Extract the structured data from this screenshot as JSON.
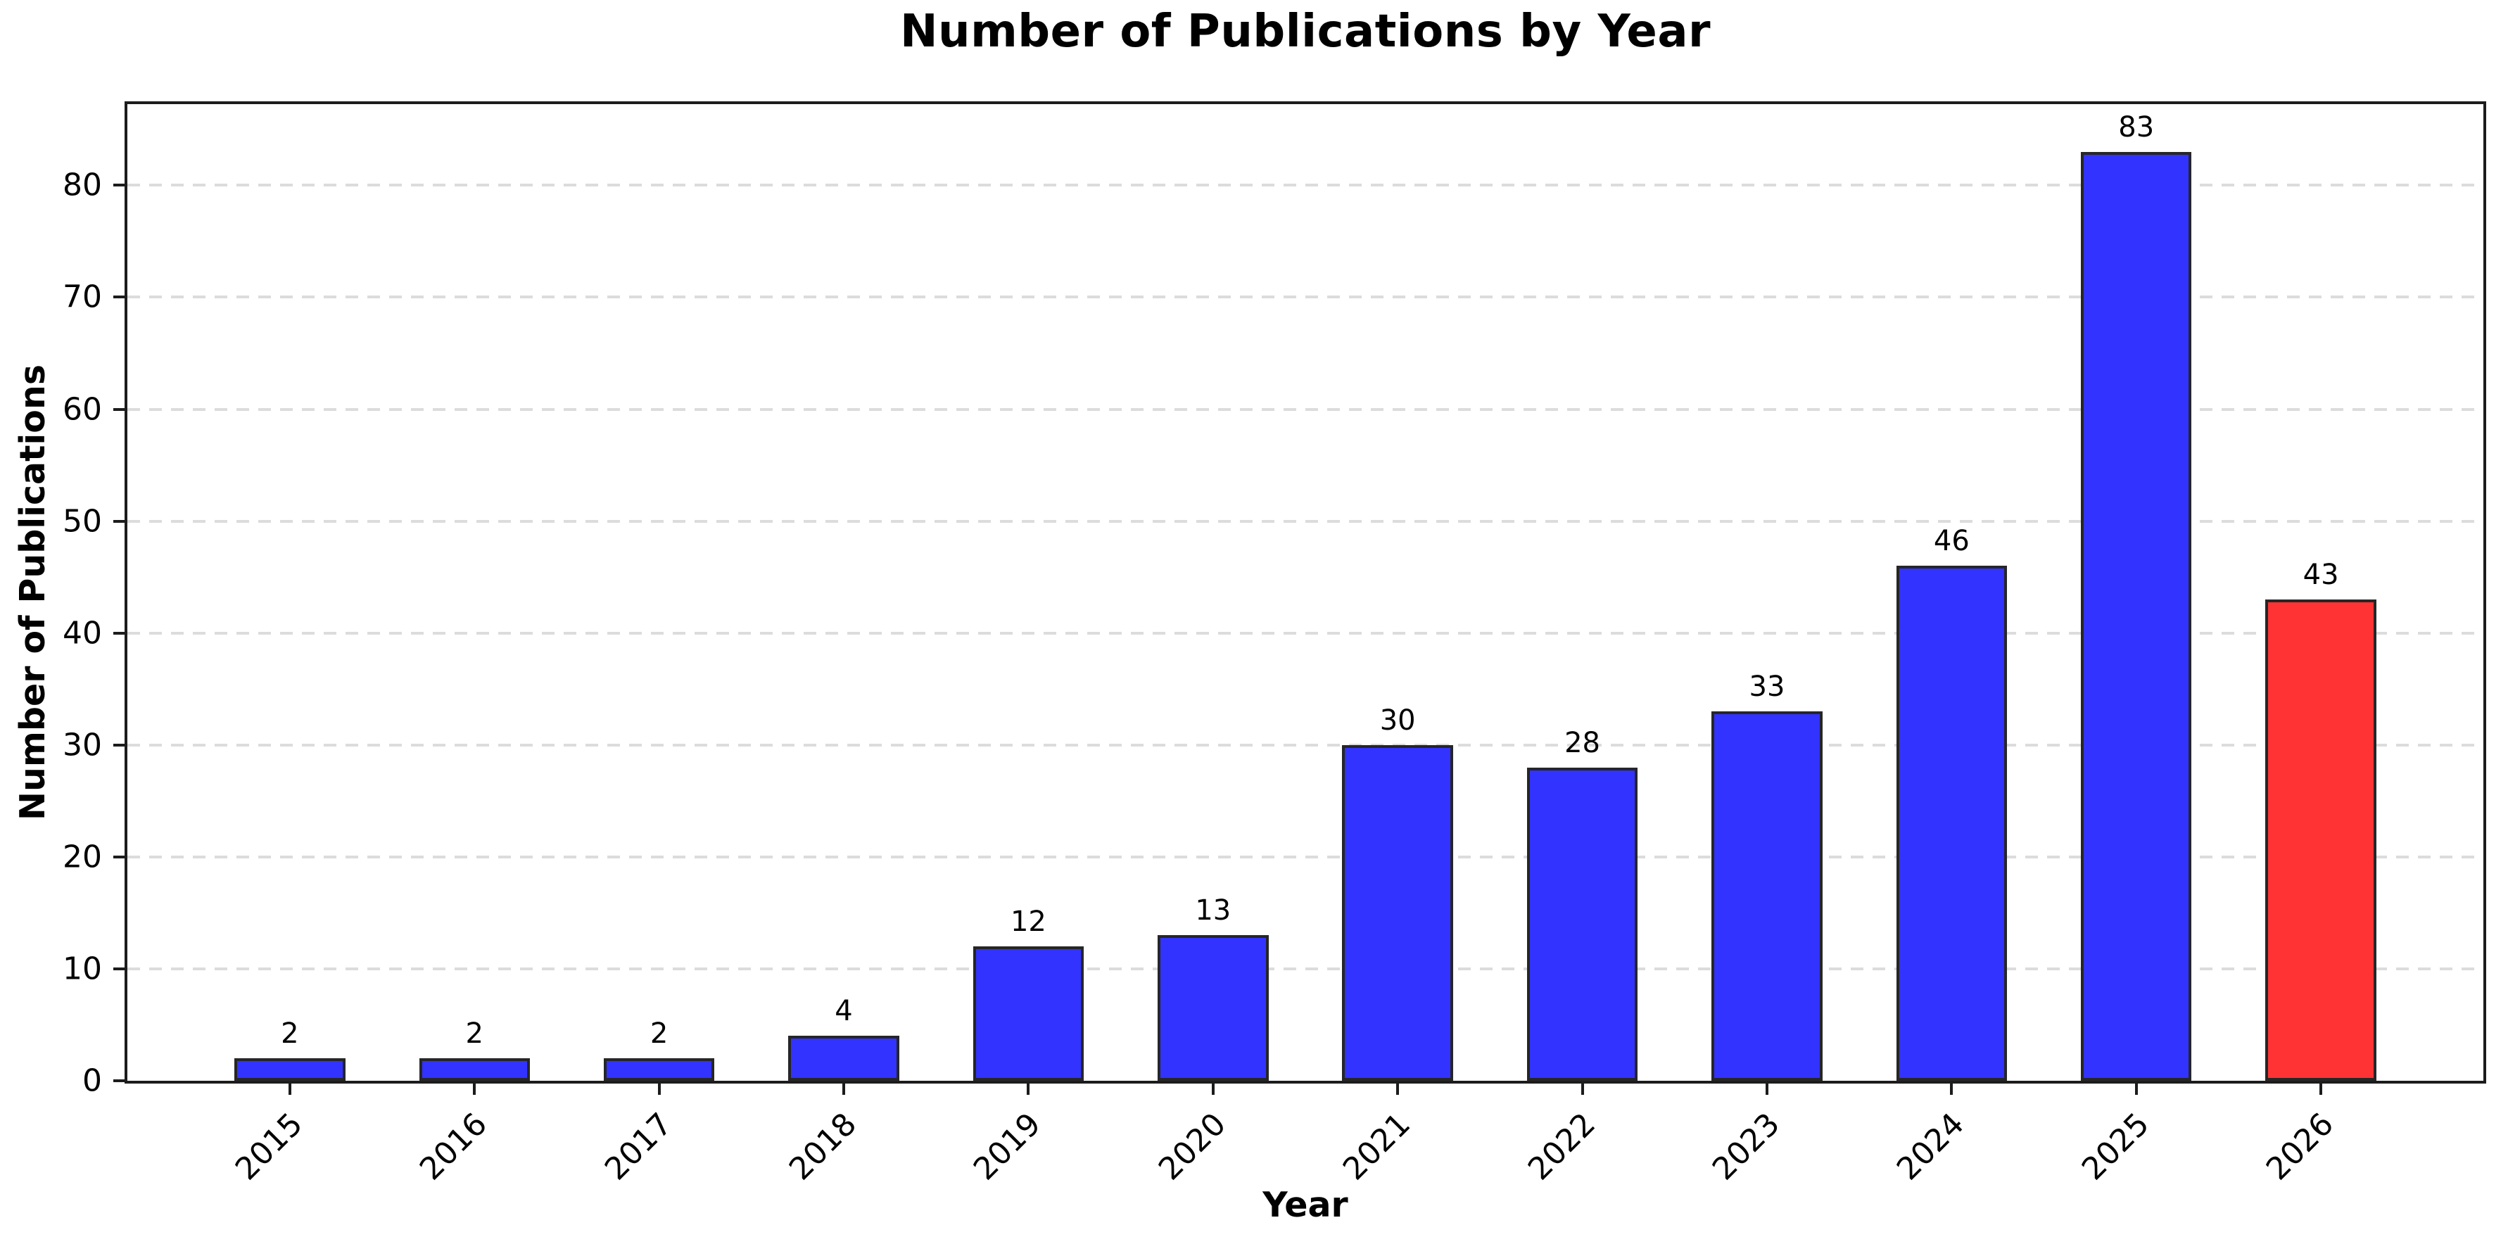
{
  "chart_data": {
    "type": "bar",
    "title": "Number of Publications by Year",
    "xlabel": "Year",
    "ylabel": "Number of Publications",
    "categories": [
      "2015",
      "2016",
      "2017",
      "2018",
      "2019",
      "2020",
      "2021",
      "2022",
      "2023",
      "2024",
      "2025",
      "2026"
    ],
    "values": [
      2,
      2,
      2,
      4,
      12,
      13,
      30,
      28,
      33,
      46,
      83,
      43
    ],
    "value_labels": [
      "2",
      "2",
      "2",
      "4",
      "12",
      "13",
      "30",
      "28",
      "33",
      "46",
      "83",
      "43"
    ],
    "yticks": [
      0,
      10,
      20,
      30,
      40,
      50,
      60,
      70,
      80
    ],
    "ylim": [
      0,
      87.25
    ],
    "bar_width_fraction": 0.6,
    "grid": "horizontal-dashed",
    "legend": "none",
    "xtick_rotation_deg": 45,
    "colors": {
      "bar_fill": "#3333ff",
      "highlight_fill": "#ff3333",
      "bar_edge": "#262626",
      "grid_color": "#dcdcdc",
      "axis_color": "#1c1c1c",
      "text_color": "#000000",
      "background": "#ffffff"
    },
    "highlight_index": 11
  }
}
